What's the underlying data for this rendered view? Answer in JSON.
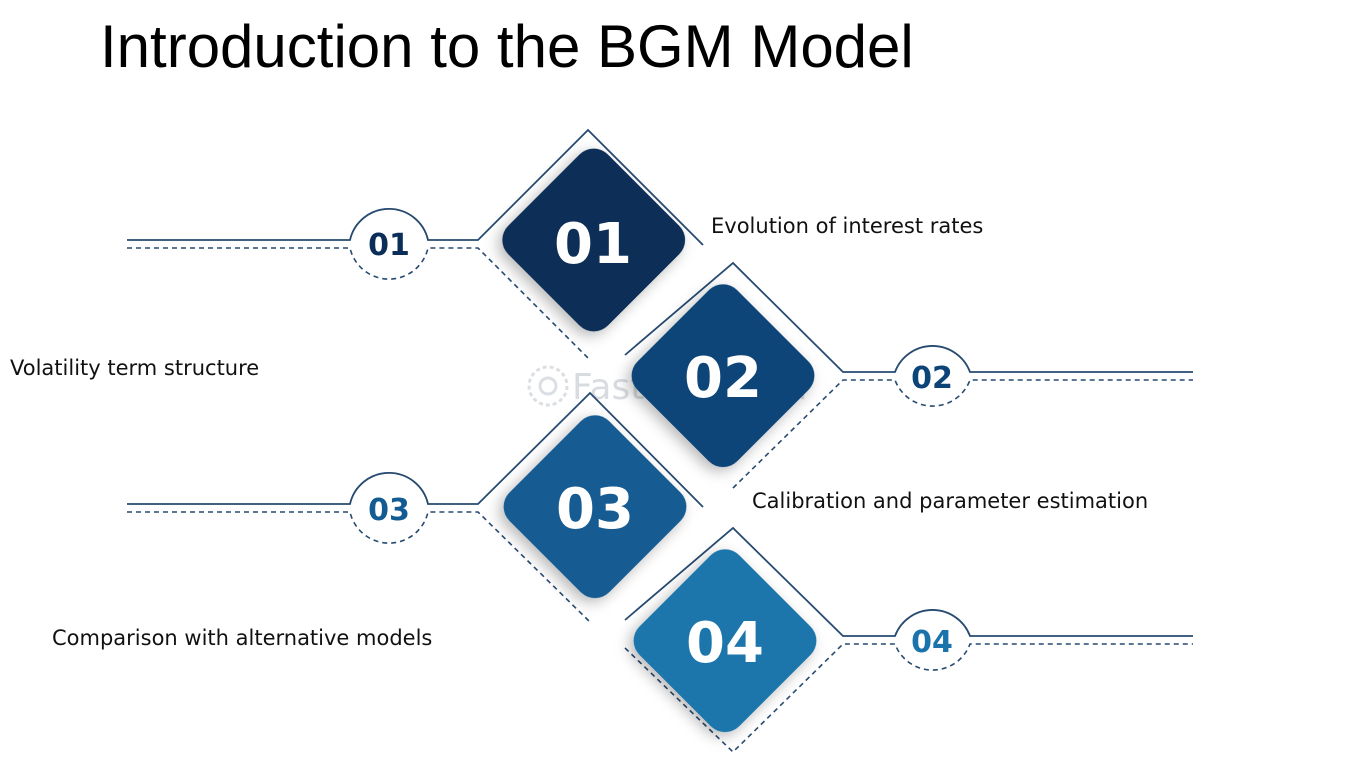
{
  "title": "Introduction to the BGM Model",
  "watermark": "FasterCapital",
  "colors": {
    "step1": "#0a2e57",
    "step2": "#0d4478",
    "step3": "#125b93",
    "step4": "#1a74ab",
    "connector": "#274a70"
  },
  "steps": [
    {
      "number": "01",
      "label": "Evolution of interest rates"
    },
    {
      "number": "02",
      "label": "Volatility term structure"
    },
    {
      "number": "03",
      "label": "Calibration and parameter estimation"
    },
    {
      "number": "04",
      "label": "Comparison with alternative models"
    }
  ]
}
